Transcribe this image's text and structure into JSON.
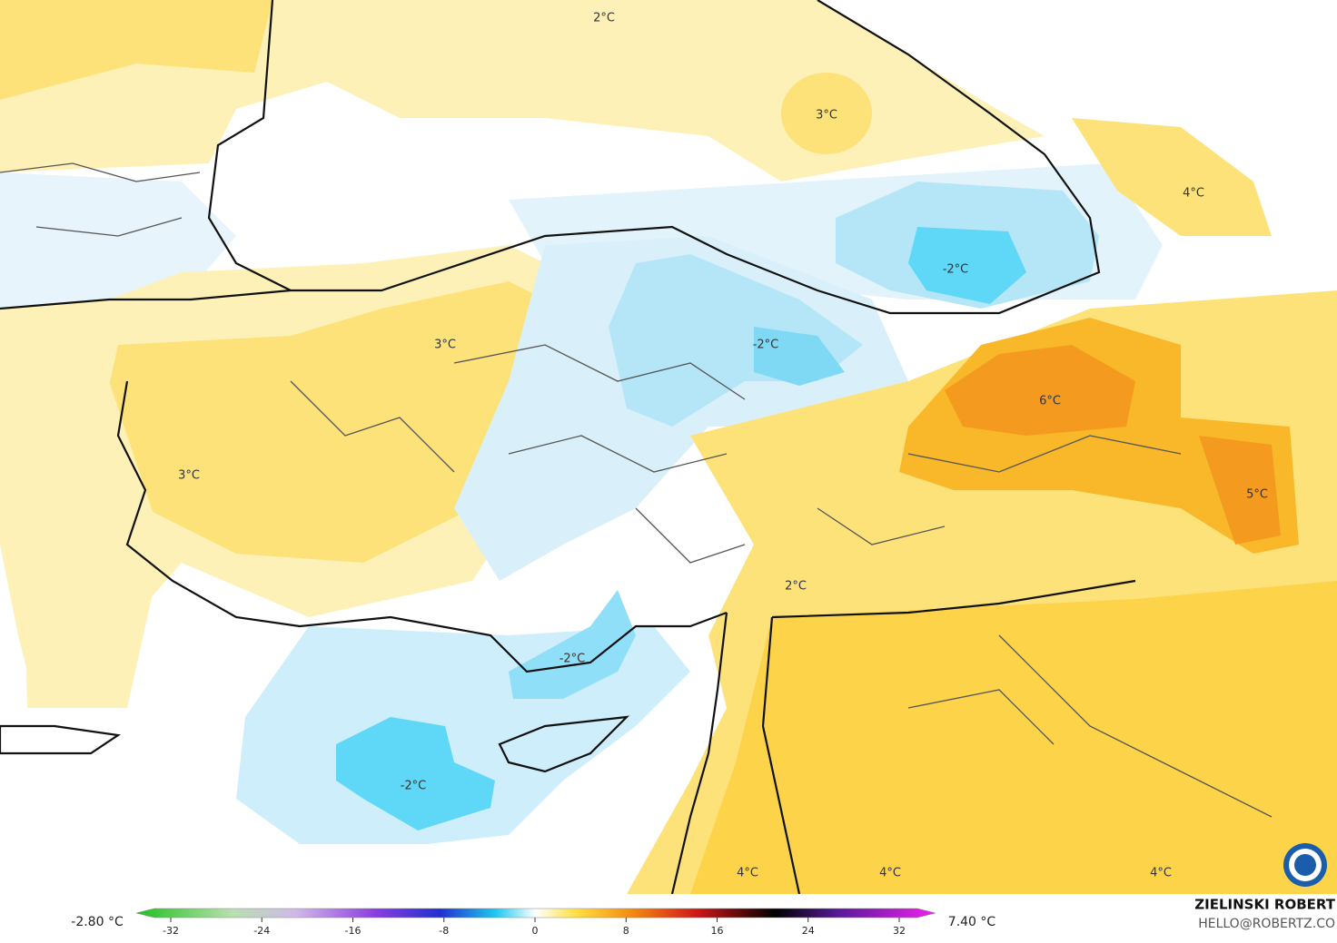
{
  "map": {
    "contour_labels": [
      "2°C",
      "3°C",
      "4°C",
      "-2°C",
      "3°C",
      "-2°C",
      "6°C",
      "3°C",
      "5°C",
      "2°C",
      "-2°C",
      "-2°C",
      "4°C",
      "4°C",
      "4°C"
    ],
    "colorbar": {
      "min_label": "-2.80 °C",
      "max_label": "7.40 °C",
      "ticks": [
        -32,
        -24,
        -16,
        -8,
        0,
        8,
        16,
        24,
        32
      ]
    },
    "credit": {
      "name": "ZIELINSKI ROBERT",
      "contact": "HELLO@ROBERTZ.CO"
    }
  }
}
